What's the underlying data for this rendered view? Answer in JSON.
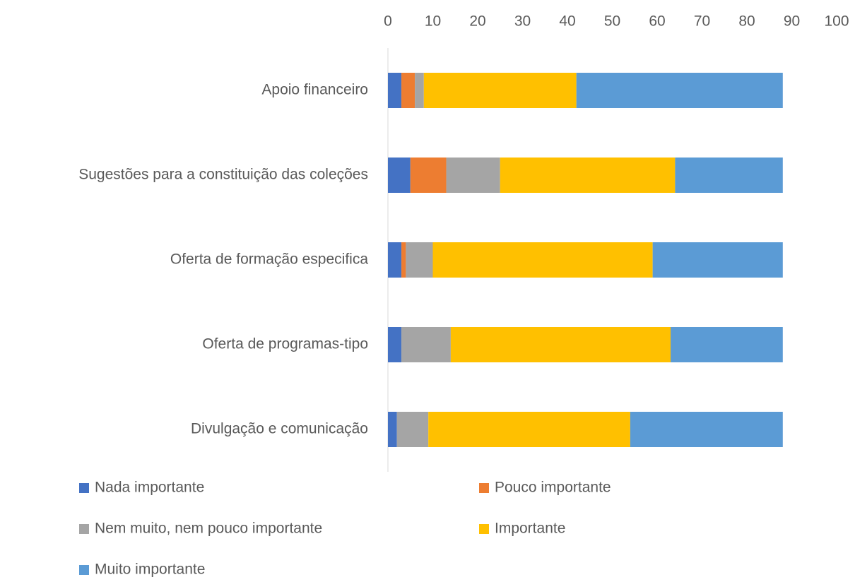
{
  "chart_data": {
    "type": "stacked-bar-horizontal",
    "categories": [
      "Apoio financeiro",
      "Sugestões para a constituição das coleções",
      "Oferta de formação especifica",
      "Oferta de programas-tipo",
      "Divulgação e comunicação"
    ],
    "series": [
      {
        "name": "Nada importante",
        "color": "#4472c4",
        "values": [
          3,
          5,
          3,
          3,
          2
        ]
      },
      {
        "name": "Pouco importante",
        "color": "#ed7d31",
        "values": [
          3,
          8,
          1,
          0,
          0
        ]
      },
      {
        "name": "Nem muito, nem pouco importante",
        "color": "#a5a5a5",
        "values": [
          2,
          12,
          6,
          11,
          7
        ]
      },
      {
        "name": "Importante",
        "color": "#ffc000",
        "values": [
          34,
          39,
          49,
          49,
          45
        ]
      },
      {
        "name": "Muito importante",
        "color": "#5b9bd5",
        "values": [
          46,
          24,
          29,
          25,
          34
        ]
      }
    ],
    "xlim": [
      0,
      100
    ],
    "xticks": [
      0,
      10,
      20,
      30,
      40,
      50,
      60,
      70,
      80,
      90,
      100
    ],
    "legend": "bottom"
  }
}
